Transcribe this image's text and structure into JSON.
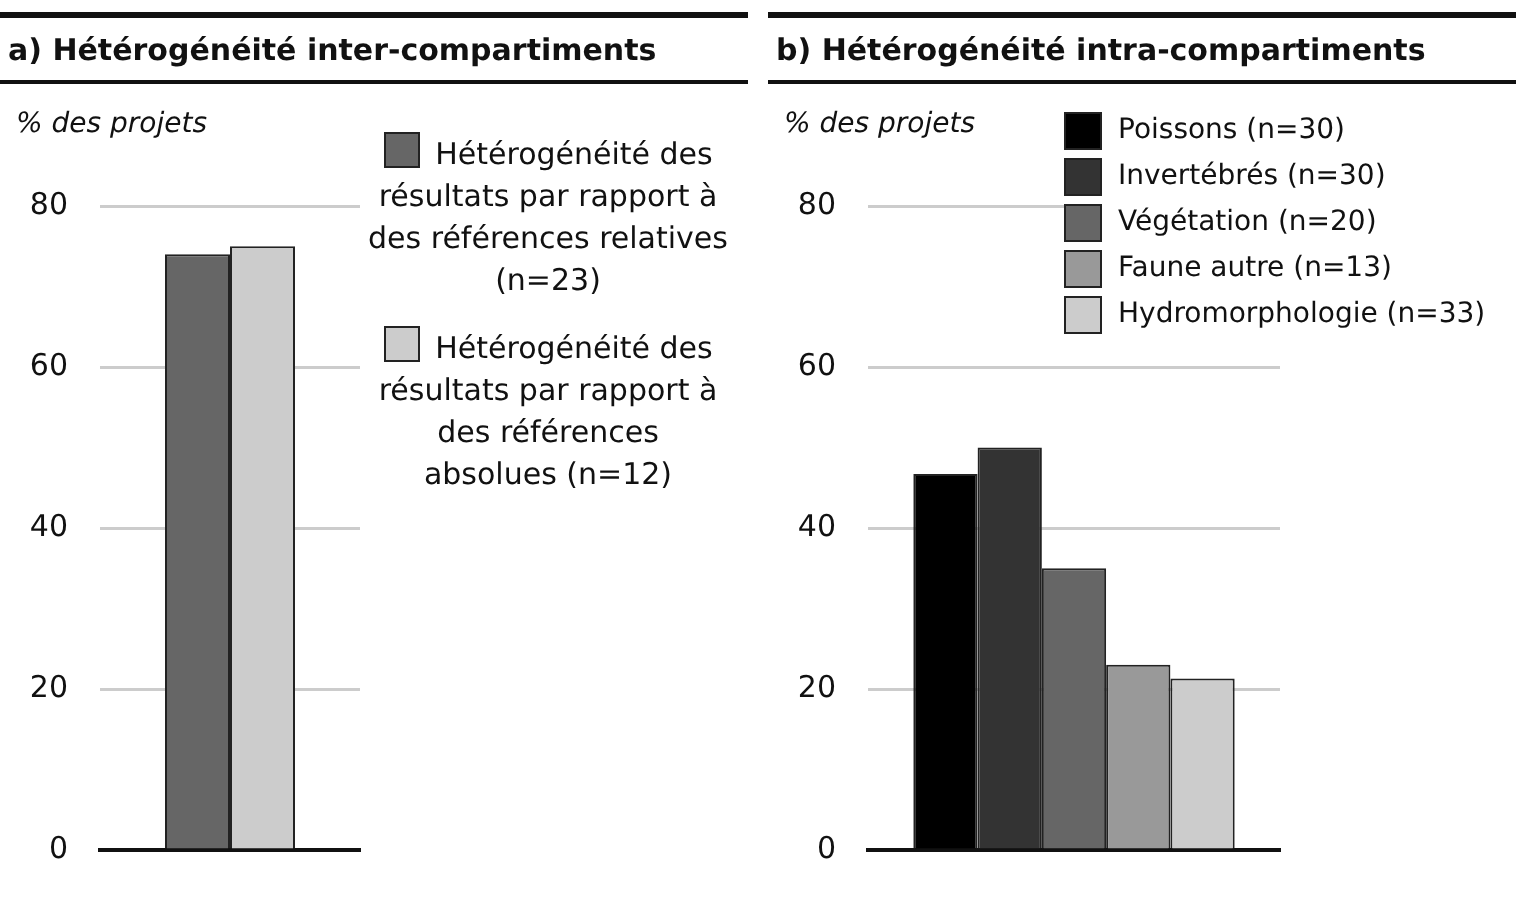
{
  "chart_data": [
    {
      "type": "bar",
      "title": "a) Hétérogénéité inter-compartiments",
      "ylabel": "% des projets",
      "categories": [
        null
      ],
      "series": [
        {
          "name": "Hétérogénéité des résultats par rapport à des références relatives (n=23)",
          "color": "#666666",
          "values": [
            74
          ]
        },
        {
          "name": "Hétérogénéité des résultats par rapport à des références absolues (n=12)",
          "color": "#cccccc",
          "values": [
            75
          ]
        }
      ],
      "ylim": [
        0,
        80
      ],
      "yticks": [
        0,
        20,
        40,
        60,
        80
      ],
      "grid": "y",
      "legend": "right",
      "tick_labels": "y"
    },
    {
      "type": "bar",
      "title": "b) Hétérogénéité intra-compartiments",
      "ylabel": "% des projets",
      "categories": [
        null
      ],
      "series": [
        {
          "name": "Poissons (n=30)",
          "color": "#000000",
          "values": [
            46.7
          ]
        },
        {
          "name": "Invertébrés (n=30)",
          "color": "#333333",
          "values": [
            50
          ]
        },
        {
          "name": "Végétation (n=20)",
          "color": "#666666",
          "values": [
            35
          ]
        },
        {
          "name": "Faune autre (n=13)",
          "color": "#999999",
          "values": [
            23
          ]
        },
        {
          "name": "Hydromorphologie (n=33)",
          "color": "#cccccc",
          "values": [
            21.3
          ]
        }
      ],
      "ylim": [
        0,
        80
      ],
      "yticks": [
        0,
        20,
        40,
        60,
        80
      ],
      "grid": "y",
      "legend": "top right",
      "tick_labels": "y"
    }
  ]
}
